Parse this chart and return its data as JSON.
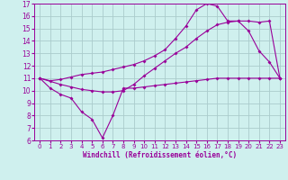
{
  "xlabel": "Windchill (Refroidissement éolien,°C)",
  "bg_color": "#cff0ee",
  "line_color": "#990099",
  "grid_color": "#aacccc",
  "xlim": [
    -0.5,
    23.5
  ],
  "ylim": [
    6,
    17
  ],
  "xticks": [
    0,
    1,
    2,
    3,
    4,
    5,
    6,
    7,
    8,
    9,
    10,
    11,
    12,
    13,
    14,
    15,
    16,
    17,
    18,
    19,
    20,
    21,
    22,
    23
  ],
  "yticks": [
    6,
    7,
    8,
    9,
    10,
    11,
    12,
    13,
    14,
    15,
    16,
    17
  ],
  "series": [
    {
      "x": [
        0,
        1,
        2,
        3,
        4,
        5,
        6,
        7,
        8,
        9,
        10,
        11,
        12,
        13,
        14,
        15,
        16,
        17,
        18,
        19,
        20,
        21,
        22,
        23
      ],
      "y": [
        11,
        10.2,
        9.7,
        9.4,
        8.3,
        7.7,
        6.2,
        8.0,
        10.2,
        10.2,
        10.3,
        10.4,
        10.5,
        10.6,
        10.7,
        10.8,
        10.9,
        11.0,
        11.0,
        11.0,
        11.0,
        11.0,
        11.0,
        11.0
      ]
    },
    {
      "x": [
        0,
        2,
        3,
        4,
        5,
        6,
        7,
        8,
        9,
        10,
        11,
        12,
        13,
        14,
        15,
        16,
        17,
        18,
        19,
        20,
        21,
        22,
        23
      ],
      "y": [
        11,
        10.5,
        10.3,
        10.1,
        10.0,
        9.9,
        9.9,
        10.0,
        10.5,
        11.2,
        11.8,
        12.4,
        13.0,
        13.5,
        14.2,
        14.8,
        15.3,
        15.5,
        15.6,
        14.8,
        13.2,
        12.3,
        11.0
      ]
    },
    {
      "x": [
        0,
        1,
        2,
        3,
        4,
        5,
        6,
        7,
        8,
        9,
        10,
        11,
        12,
        13,
        14,
        15,
        16,
        17,
        18,
        19,
        20,
        21,
        22,
        23
      ],
      "y": [
        11,
        10.8,
        10.9,
        11.1,
        11.3,
        11.4,
        11.5,
        11.7,
        11.9,
        12.1,
        12.4,
        12.8,
        13.3,
        14.2,
        15.2,
        16.5,
        17.0,
        16.8,
        15.6,
        15.6,
        15.6,
        15.5,
        15.6,
        11.0
      ]
    }
  ]
}
